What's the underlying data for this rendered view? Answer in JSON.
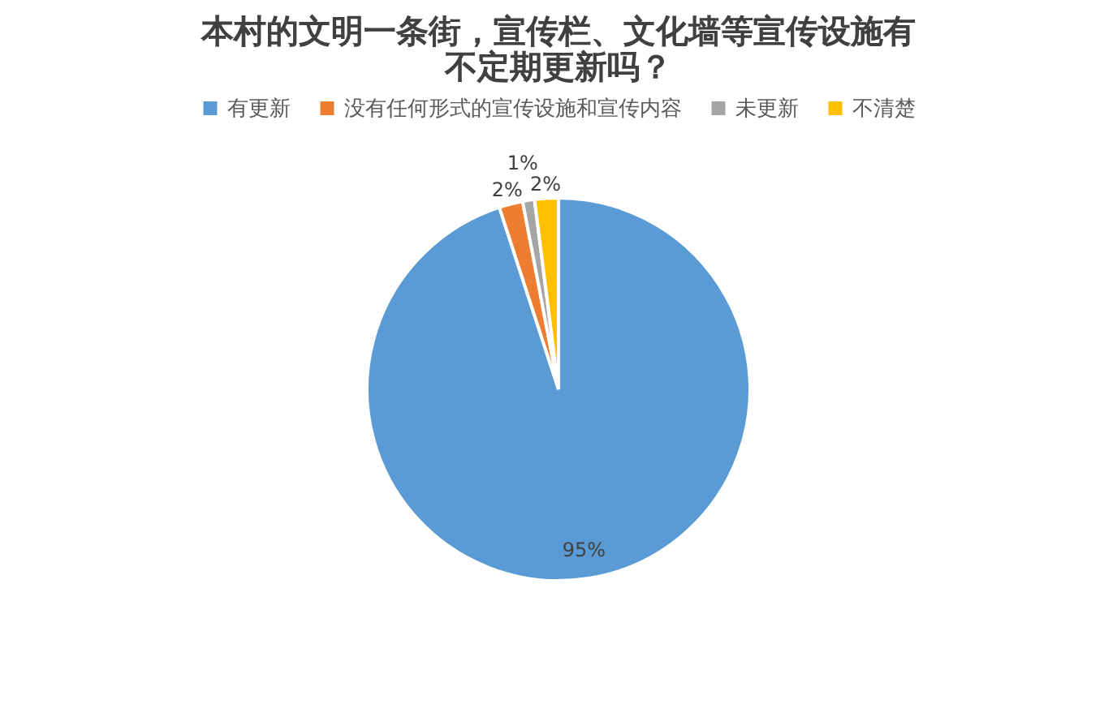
{
  "chart_data": {
    "type": "pie",
    "title": "本村的文明一条街，宣传栏、文化墙等宣传设施有不定期更新吗？",
    "categories": [
      "有更新",
      "没有任何形式的宣传设施和宣传内容",
      "未更新",
      "不清楚"
    ],
    "values": [
      95,
      2,
      1,
      2
    ],
    "value_labels": [
      "95%",
      "2%",
      "1%",
      "2%"
    ],
    "colors": [
      "#5b9bd5",
      "#ed7d31",
      "#a5a5a5",
      "#ffc000"
    ],
    "legend": "top"
  }
}
